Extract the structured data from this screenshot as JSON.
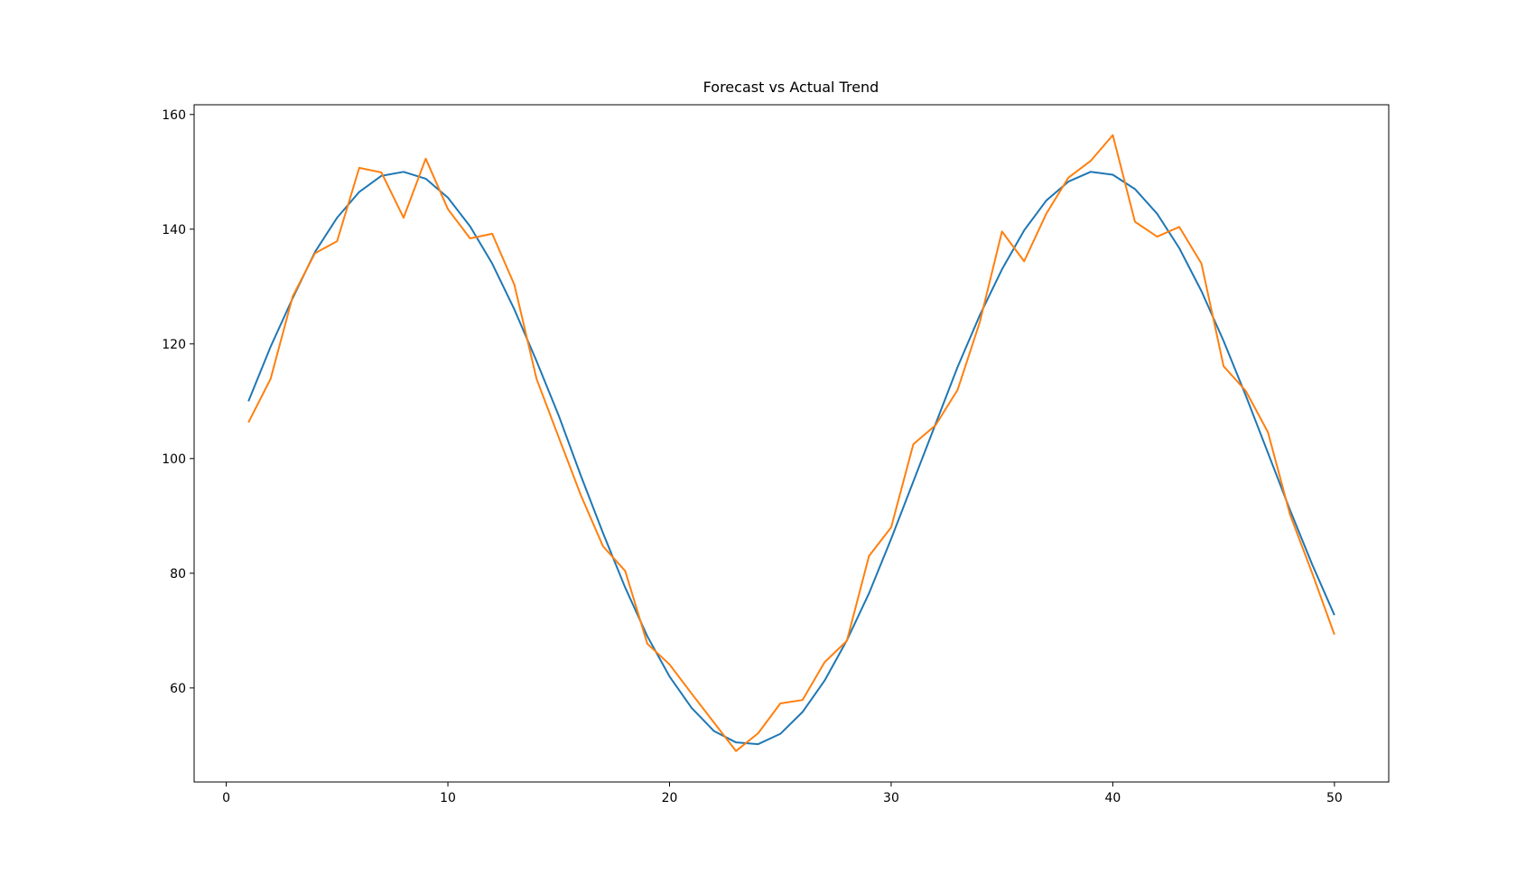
{
  "chart_data": {
    "type": "line",
    "title": "Forecast vs Actual Trend",
    "x": [
      1,
      2,
      3,
      4,
      5,
      6,
      7,
      8,
      9,
      10,
      11,
      12,
      13,
      14,
      15,
      16,
      17,
      18,
      19,
      20,
      21,
      22,
      23,
      24,
      25,
      26,
      27,
      28,
      29,
      30,
      31,
      32,
      33,
      34,
      35,
      36,
      37,
      38,
      39,
      40,
      41,
      42,
      43,
      44,
      45,
      46,
      47,
      48,
      49,
      50
    ],
    "series": [
      {
        "color": "#1f77b4",
        "values": [
          110,
          119.5,
          128,
          136,
          142,
          146.5,
          149.3,
          150,
          148.8,
          145.5,
          140.5,
          134,
          126,
          117,
          107.5,
          97,
          87,
          77.5,
          69,
          62,
          56.5,
          52.5,
          50.5,
          50.2,
          52,
          55.8,
          61.3,
          68.3,
          76.5,
          86,
          96,
          106,
          116,
          125,
          133,
          139.8,
          145,
          148.3,
          150,
          149.5,
          147,
          142.7,
          136.7,
          129.2,
          120.5,
          111,
          101,
          91,
          81.5,
          72.7
        ]
      },
      {
        "color": "#ff7f0e",
        "values": [
          106.3,
          113.9,
          128.3,
          135.8,
          137.9,
          150.7,
          149.9,
          142,
          152.3,
          143.5,
          138.4,
          139.2,
          130.3,
          113.9,
          103.7,
          93.6,
          84.7,
          80.4,
          67.7,
          64.1,
          59,
          54,
          49,
          52.1,
          57.3,
          57.9,
          64.5,
          68.2,
          83,
          88,
          102.5,
          105.8,
          112,
          123.8,
          139.6,
          134.4,
          142.7,
          149,
          151.9,
          156.4,
          141.3,
          138.7,
          140.4,
          134,
          116.1,
          111.8,
          104.6,
          90.2,
          80,
          69.3
        ]
      }
    ],
    "xlim": [
      -1.45,
      52.45
    ],
    "ylim": [
      43.6,
      161.7
    ],
    "xticks": [
      0,
      10,
      20,
      30,
      40,
      50
    ],
    "yticks": [
      60,
      80,
      100,
      120,
      140,
      160
    ]
  }
}
